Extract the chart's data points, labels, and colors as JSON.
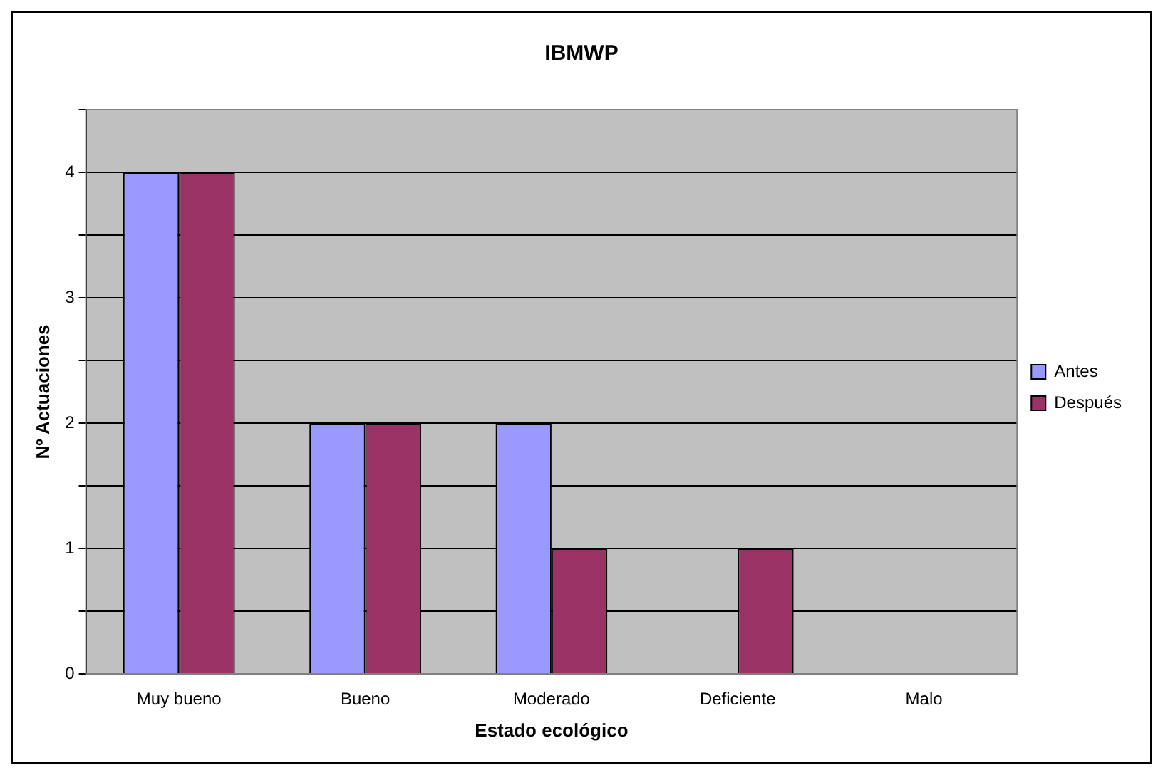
{
  "chart_data": {
    "type": "bar",
    "title": "IBMWP",
    "xlabel": "Estado ecológico",
    "ylabel": "Nº Actuaciones",
    "categories": [
      "Muy bueno",
      "Bueno",
      "Moderado",
      "Deficiente",
      "Malo"
    ],
    "series": [
      {
        "name": "Antes",
        "color": "#9999ff",
        "values": [
          4,
          2,
          2,
          0,
          0
        ]
      },
      {
        "name": "Después",
        "color": "#993366",
        "values": [
          4,
          2,
          1,
          1,
          0
        ]
      }
    ],
    "ylim": [
      0,
      4.5
    ],
    "yticks": [
      0,
      {
        "value": 0.5,
        "label": null
      },
      1,
      {
        "value": 1.5,
        "label": null
      },
      2,
      {
        "value": 2.5,
        "label": null
      },
      3,
      {
        "value": 3.5,
        "label": null
      },
      4,
      {
        "value": 4.5,
        "label": null
      }
    ],
    "grid": "y",
    "legend": "right"
  }
}
